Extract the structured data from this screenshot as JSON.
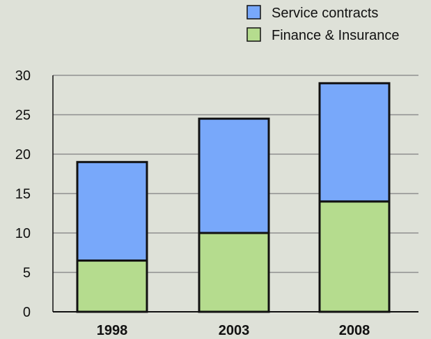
{
  "chart_data": {
    "type": "bar",
    "stacked": true,
    "categories": [
      "1998",
      "2003",
      "2008"
    ],
    "series": [
      {
        "name": "Finance & Insurance",
        "values": [
          6.5,
          10,
          14
        ],
        "color": "#b5dc8e"
      },
      {
        "name": "Service contracts",
        "values": [
          12.5,
          14.5,
          15
        ],
        "color": "#78a8fa"
      }
    ],
    "ylim": [
      0,
      30
    ],
    "yticks": [
      0,
      5,
      10,
      15,
      20,
      25,
      30
    ],
    "grid": true,
    "legend": {
      "position": "top-right",
      "order": [
        "Service contracts",
        "Finance & Insurance"
      ]
    },
    "title": "",
    "xlabel": "",
    "ylabel": ""
  }
}
